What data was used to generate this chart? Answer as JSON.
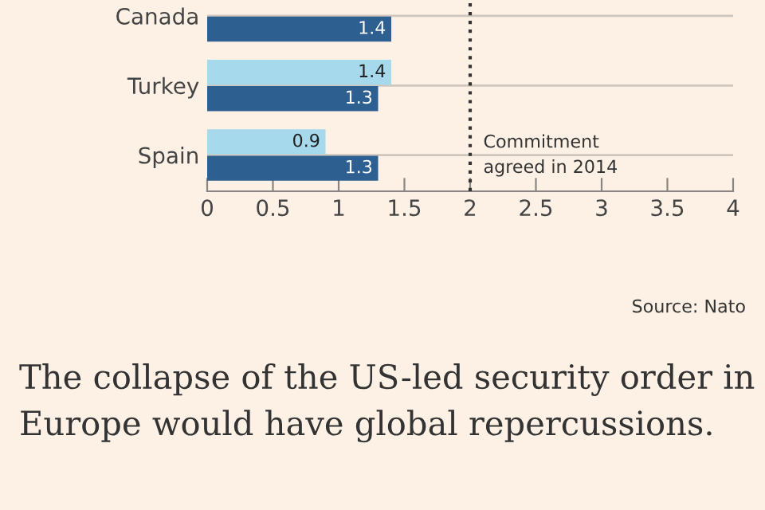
{
  "chart_data": {
    "type": "bar",
    "orientation": "horizontal",
    "categories": [
      "Canada",
      "Turkey",
      "Spain"
    ],
    "series": [
      {
        "color": "#a6d9ec",
        "values": [
          null,
          1.4,
          0.9
        ]
      },
      {
        "color": "#2d5f91",
        "values": [
          1.4,
          1.3,
          1.3
        ]
      }
    ],
    "xlim": [
      0,
      4
    ],
    "xticks": [
      0,
      0.5,
      1,
      1.5,
      2,
      2.5,
      3,
      3.5,
      4
    ],
    "grid": "y",
    "data_labels": true,
    "legend": false,
    "ref_lines": [
      {
        "axis": "x",
        "value": 2,
        "label": "Commitment\nagreed in 2014",
        "line_style": "dotted",
        "color": "#333333"
      }
    ],
    "annotations": [
      "Source: Nato",
      "The collapse of the US-led security order in Europe would have global repercussions."
    ]
  }
}
